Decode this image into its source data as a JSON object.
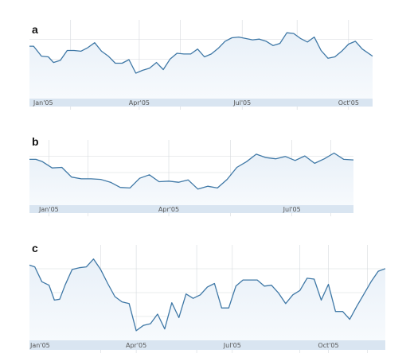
{
  "colors": {
    "line": "#3f78a6",
    "area_top": "#e8f0f8",
    "area_bottom": "#f7fafd",
    "grid": "#d5d9dd",
    "axis_band": "#d9e5f1",
    "label": "#111111",
    "tick_text": "#555555"
  },
  "chart_data": [
    {
      "panel_label": "a",
      "type": "area",
      "title": "",
      "xlabel": "",
      "ylabel": "",
      "xlim": [
        0,
        1
      ],
      "ylim": [
        0,
        100
      ],
      "grid": true,
      "legend": "none",
      "tick_labels": [
        {
          "x": 0.04,
          "text": "Jan'05"
        },
        {
          "x": 0.32,
          "text": "Apr'05"
        },
        {
          "x": 0.62,
          "text": "Jul'05"
        },
        {
          "x": 0.93,
          "text": "Oct'05"
        }
      ],
      "grid_x": [
        0.12,
        0.32,
        0.44,
        0.62,
        0.78,
        0.93
      ],
      "series": [
        {
          "x": [
            0,
            0.012,
            0.035,
            0.055,
            0.07,
            0.09,
            0.11,
            0.13,
            0.15,
            0.17,
            0.19,
            0.21,
            0.23,
            0.25,
            0.27,
            0.29,
            0.31,
            0.33,
            0.35,
            0.37,
            0.39,
            0.41,
            0.43,
            0.45,
            0.47,
            0.49,
            0.51,
            0.53,
            0.55,
            0.57,
            0.59,
            0.61,
            0.63,
            0.65,
            0.67,
            0.69,
            0.71,
            0.73,
            0.75,
            0.77,
            0.79,
            0.81,
            0.83,
            0.85,
            0.87,
            0.89,
            0.91,
            0.93,
            0.95,
            0.97,
            1.0
          ],
          "y": [
            74,
            74,
            60,
            59,
            51,
            54,
            68,
            68,
            67,
            72,
            79,
            67,
            60,
            50,
            50,
            55,
            36,
            40,
            43,
            51,
            41,
            56,
            64,
            63,
            63,
            70,
            59,
            63,
            71,
            81,
            86,
            87,
            85,
            83,
            84,
            81,
            75,
            78,
            93,
            92,
            85,
            80,
            87,
            68,
            57,
            59,
            67,
            77,
            81,
            70,
            60
          ]
        }
      ]
    },
    {
      "panel_label": "b",
      "type": "area",
      "title": "",
      "xlabel": "",
      "ylabel": "",
      "xlim": [
        0,
        1
      ],
      "ylim": [
        0,
        100
      ],
      "grid": true,
      "legend": "none",
      "tick_labels": [
        {
          "x": 0.06,
          "text": "Jan'05"
        },
        {
          "x": 0.43,
          "text": "Apr'05"
        },
        {
          "x": 0.81,
          "text": "Jul'05"
        }
      ],
      "grid_x": [
        0.06,
        0.18,
        0.43,
        0.62,
        0.81,
        0.93
      ],
      "series": [
        {
          "x": [
            0,
            0.02,
            0.04,
            0.07,
            0.1,
            0.13,
            0.16,
            0.19,
            0.22,
            0.25,
            0.28,
            0.31,
            0.34,
            0.37,
            0.4,
            0.43,
            0.46,
            0.49,
            0.52,
            0.55,
            0.58,
            0.61,
            0.64,
            0.67,
            0.7,
            0.73,
            0.76,
            0.79,
            0.82,
            0.85,
            0.88,
            0.91,
            0.94,
            0.97,
            1.0
          ],
          "y": [
            80,
            80,
            76,
            65,
            66,
            49,
            46,
            46,
            45,
            40,
            31,
            30,
            47,
            53,
            41,
            42,
            40,
            44,
            28,
            33,
            30,
            45,
            66,
            76,
            89,
            83,
            81,
            85,
            78,
            86,
            73,
            81,
            91,
            80,
            79
          ]
        }
      ]
    },
    {
      "panel_label": "c",
      "type": "area",
      "title": "",
      "xlabel": "",
      "ylabel": "",
      "xlim": [
        0,
        1
      ],
      "ylim": [
        0,
        100
      ],
      "grid": true,
      "legend": "none",
      "tick_labels": [
        {
          "x": 0.03,
          "text": "Jan'05"
        },
        {
          "x": 0.3,
          "text": "Apr'05"
        },
        {
          "x": 0.57,
          "text": "Jul'05"
        },
        {
          "x": 0.84,
          "text": "Oct'05"
        }
      ],
      "grid_x": [
        0.2,
        0.3,
        0.47,
        0.57,
        0.76,
        0.84,
        0.95
      ],
      "series": [
        {
          "x": [
            0,
            0.015,
            0.035,
            0.055,
            0.07,
            0.085,
            0.1,
            0.12,
            0.14,
            0.16,
            0.18,
            0.2,
            0.22,
            0.24,
            0.26,
            0.28,
            0.3,
            0.32,
            0.34,
            0.36,
            0.38,
            0.4,
            0.42,
            0.44,
            0.46,
            0.48,
            0.5,
            0.52,
            0.54,
            0.56,
            0.58,
            0.6,
            0.62,
            0.64,
            0.66,
            0.68,
            0.7,
            0.72,
            0.74,
            0.76,
            0.78,
            0.8,
            0.82,
            0.84,
            0.86,
            0.88,
            0.9,
            0.92,
            0.94,
            0.96,
            0.98,
            1.0
          ],
          "y": [
            86,
            84,
            67,
            63,
            46,
            47,
            63,
            81,
            83,
            84,
            93,
            81,
            65,
            50,
            44,
            42,
            11,
            17,
            19,
            30,
            13,
            43,
            26,
            53,
            48,
            52,
            61,
            65,
            37,
            37,
            62,
            69,
            69,
            69,
            62,
            63,
            54,
            42,
            52,
            57,
            71,
            70,
            46,
            64,
            33,
            33,
            24,
            39,
            53,
            67,
            79,
            82
          ]
        }
      ]
    }
  ]
}
